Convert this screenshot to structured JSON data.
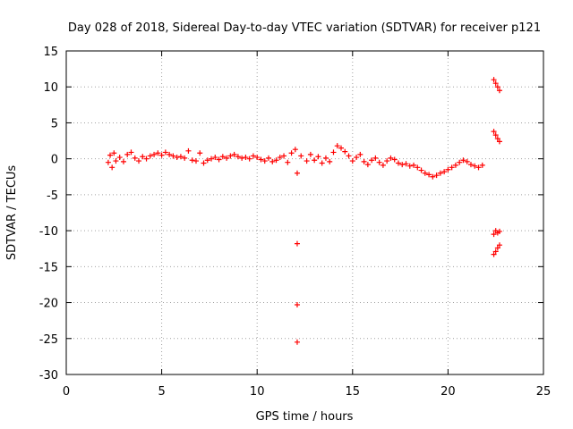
{
  "chart_data": {
    "type": "scatter",
    "title": "Day 028 of 2018, Sidereal Day-to-day VTEC variation (SDTVAR) for receiver p121",
    "xlabel": "GPS time / hours",
    "ylabel": "SDTVAR / TECUs",
    "xlim": [
      0,
      25
    ],
    "ylim": [
      -30,
      15
    ],
    "xticks": [
      "0",
      "5",
      "10",
      "15",
      "20",
      "25"
    ],
    "yticks": [
      "15",
      "10",
      "5",
      "0",
      "-5",
      "-10",
      "-15",
      "-20",
      "-25",
      "-30"
    ],
    "grid": true,
    "marker": "+",
    "marker_color": "#ff0000",
    "series": [
      {
        "values": [
          [
            2.2,
            -0.5
          ],
          [
            2.3,
            0.5
          ],
          [
            2.4,
            -1.2
          ],
          [
            2.5,
            0.8
          ],
          [
            2.6,
            -0.3
          ],
          [
            2.8,
            0.2
          ],
          [
            3.0,
            -0.4
          ],
          [
            3.2,
            0.6
          ],
          [
            3.4,
            0.9
          ],
          [
            3.6,
            0.1
          ],
          [
            3.8,
            -0.3
          ],
          [
            4.0,
            0.3
          ],
          [
            4.2,
            0.0
          ],
          [
            4.4,
            0.4
          ],
          [
            4.6,
            0.6
          ],
          [
            4.8,
            0.8
          ],
          [
            5.0,
            0.5
          ],
          [
            5.2,
            0.9
          ],
          [
            5.4,
            0.6
          ],
          [
            5.6,
            0.4
          ],
          [
            5.8,
            0.2
          ],
          [
            6.0,
            0.3
          ],
          [
            6.2,
            0.1
          ],
          [
            6.4,
            1.1
          ],
          [
            6.6,
            -0.2
          ],
          [
            6.8,
            -0.3
          ],
          [
            7.0,
            0.8
          ],
          [
            7.2,
            -0.6
          ],
          [
            7.4,
            -0.2
          ],
          [
            7.6,
            0.0
          ],
          [
            7.8,
            0.2
          ],
          [
            8.0,
            -0.1
          ],
          [
            8.2,
            0.3
          ],
          [
            8.4,
            0.1
          ],
          [
            8.6,
            0.4
          ],
          [
            8.8,
            0.6
          ],
          [
            9.0,
            0.3
          ],
          [
            9.2,
            0.1
          ],
          [
            9.4,
            0.2
          ],
          [
            9.6,
            0.0
          ],
          [
            9.8,
            0.4
          ],
          [
            10.0,
            0.2
          ],
          [
            10.2,
            -0.1
          ],
          [
            10.4,
            -0.3
          ],
          [
            10.6,
            0.1
          ],
          [
            10.8,
            -0.4
          ],
          [
            11.0,
            -0.2
          ],
          [
            11.2,
            0.2
          ],
          [
            11.4,
            0.4
          ],
          [
            11.6,
            -0.5
          ],
          [
            11.8,
            0.8
          ],
          [
            12.0,
            1.3
          ],
          [
            12.1,
            -2.0
          ],
          [
            12.1,
            -11.8
          ],
          [
            12.1,
            -20.3
          ],
          [
            12.1,
            -25.5
          ],
          [
            12.3,
            0.4
          ],
          [
            12.6,
            -0.3
          ],
          [
            12.8,
            0.6
          ],
          [
            13.0,
            -0.2
          ],
          [
            13.2,
            0.3
          ],
          [
            13.4,
            -0.6
          ],
          [
            13.6,
            0.1
          ],
          [
            13.8,
            -0.4
          ],
          [
            14.0,
            0.9
          ],
          [
            14.2,
            1.8
          ],
          [
            14.4,
            1.5
          ],
          [
            14.6,
            1.0
          ],
          [
            14.8,
            0.4
          ],
          [
            15.0,
            -0.3
          ],
          [
            15.2,
            0.2
          ],
          [
            15.4,
            0.6
          ],
          [
            15.6,
            -0.4
          ],
          [
            15.8,
            -0.8
          ],
          [
            16.0,
            -0.2
          ],
          [
            16.2,
            0.1
          ],
          [
            16.4,
            -0.5
          ],
          [
            16.6,
            -0.9
          ],
          [
            16.8,
            -0.3
          ],
          [
            17.0,
            0.1
          ],
          [
            17.2,
            -0.1
          ],
          [
            17.4,
            -0.6
          ],
          [
            17.6,
            -0.8
          ],
          [
            17.8,
            -0.7
          ],
          [
            18.0,
            -1.0
          ],
          [
            18.2,
            -0.9
          ],
          [
            18.4,
            -1.2
          ],
          [
            18.6,
            -1.6
          ],
          [
            18.8,
            -2.0
          ],
          [
            19.0,
            -2.2
          ],
          [
            19.2,
            -2.5
          ],
          [
            19.4,
            -2.3
          ],
          [
            19.6,
            -2.0
          ],
          [
            19.8,
            -1.8
          ],
          [
            20.0,
            -1.5
          ],
          [
            20.2,
            -1.2
          ],
          [
            20.4,
            -0.9
          ],
          [
            20.6,
            -0.5
          ],
          [
            20.8,
            -0.2
          ],
          [
            21.0,
            -0.4
          ],
          [
            21.2,
            -0.8
          ],
          [
            21.4,
            -1.0
          ],
          [
            21.6,
            -1.2
          ],
          [
            21.8,
            -0.9
          ],
          [
            22.4,
            11.0
          ],
          [
            22.5,
            10.5
          ],
          [
            22.6,
            10.0
          ],
          [
            22.7,
            9.5
          ],
          [
            22.4,
            3.8
          ],
          [
            22.5,
            3.3
          ],
          [
            22.6,
            2.8
          ],
          [
            22.7,
            2.4
          ],
          [
            22.4,
            -10.5
          ],
          [
            22.5,
            -10.0
          ],
          [
            22.6,
            -10.3
          ],
          [
            22.7,
            -10.1
          ],
          [
            22.4,
            -13.3
          ],
          [
            22.5,
            -12.9
          ],
          [
            22.6,
            -12.4
          ],
          [
            22.7,
            -12.0
          ]
        ]
      }
    ]
  }
}
